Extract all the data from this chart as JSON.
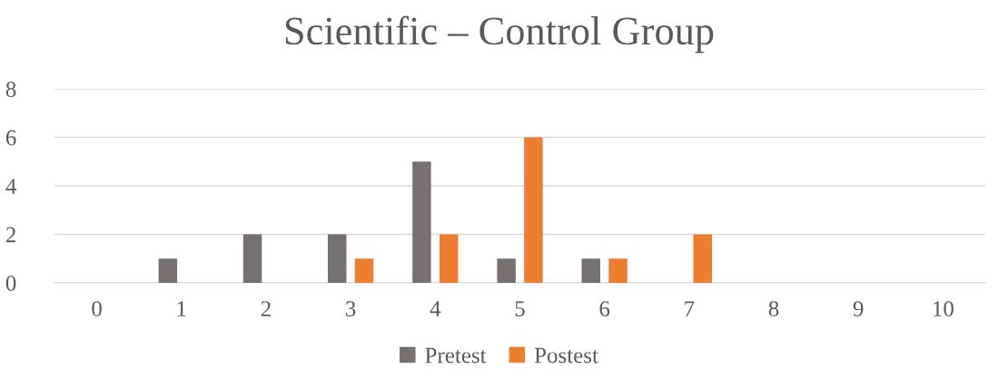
{
  "chart_data": {
    "type": "bar",
    "title": "Scientific – Control Group",
    "categories": [
      "0",
      "1",
      "2",
      "3",
      "4",
      "5",
      "6",
      "7",
      "8",
      "9",
      "10"
    ],
    "series": [
      {
        "name": "Pretest",
        "color": "#767171",
        "values": [
          0,
          1,
          2,
          2,
          5,
          1,
          1,
          0,
          0,
          0,
          0
        ]
      },
      {
        "name": "Postest",
        "color": "#ed7d31",
        "values": [
          0,
          0,
          0,
          1,
          2,
          6,
          1,
          2,
          0,
          0,
          0
        ]
      }
    ],
    "ylim": [
      0,
      8
    ],
    "yticks": [
      0,
      2,
      4,
      6,
      8
    ],
    "grid": "y",
    "legend": "bottom"
  }
}
